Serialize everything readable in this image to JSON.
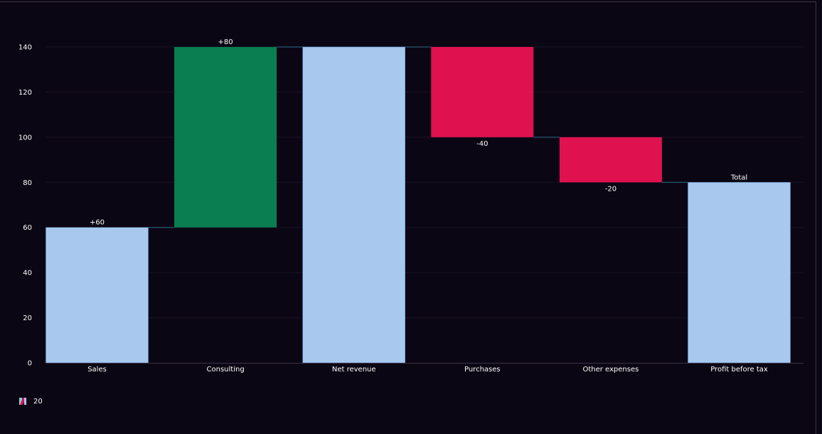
{
  "chart_data": {
    "type": "bar",
    "subtype": "waterfall",
    "categories": [
      "Sales",
      "Consulting",
      "Net revenue",
      "Purchases",
      "Other expenses",
      "Profit before tax"
    ],
    "steps": [
      {
        "category": "Sales",
        "kind": "increase",
        "base": 0,
        "value": 60,
        "label": "+60"
      },
      {
        "category": "Consulting",
        "kind": "increase",
        "base": 60,
        "value": 80,
        "label": "+80"
      },
      {
        "category": "Net revenue",
        "kind": "total",
        "base": 0,
        "value": 140,
        "label": ""
      },
      {
        "category": "Purchases",
        "kind": "decrease",
        "base": 140,
        "value": -40,
        "label": "-40"
      },
      {
        "category": "Other expenses",
        "kind": "decrease",
        "base": 100,
        "value": -20,
        "label": "-20"
      },
      {
        "category": "Profit before tax",
        "kind": "total",
        "base": 0,
        "value": 80,
        "label": "Total"
      }
    ],
    "ylim": [
      0,
      140
    ],
    "yticks": [
      0,
      20,
      40,
      60,
      80,
      100,
      120,
      140
    ],
    "title": "",
    "xlabel": "",
    "ylabel": "",
    "grid": true,
    "connectors": true,
    "colors": {
      "start_total": "#a8c8ee",
      "increase": "#0a7d51",
      "decrease": "#e0114f",
      "connector": "#2a6a8a",
      "grid": "#1a1424",
      "axis": "#3a3344"
    },
    "legend": {
      "position": "bottom-left",
      "label": "20",
      "icon": "multicolor-swatch-icon"
    }
  }
}
